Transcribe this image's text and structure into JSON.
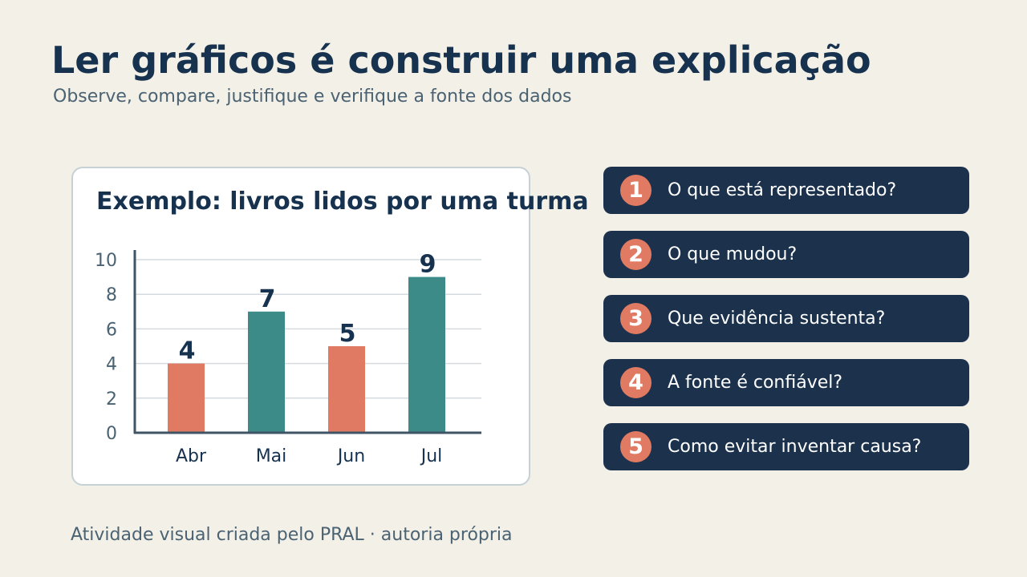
{
  "header": {
    "title": "Ler gráficos é construir uma explicação",
    "subtitle": "Observe, compare, justifique e verifique a fonte dos dados"
  },
  "chart_data": {
    "type": "bar",
    "title": "Exemplo: livros lidos por uma turma",
    "categories": [
      "Abr",
      "Mai",
      "Jun",
      "Jul"
    ],
    "values": [
      4,
      7,
      5,
      9
    ],
    "ylim": [
      0,
      10
    ],
    "yticks": [
      0,
      2,
      4,
      6,
      8,
      10
    ],
    "grid": true,
    "colors": [
      "#e07a62",
      "#3d8b88",
      "#e07a62",
      "#3d8b88"
    ],
    "data_label_color": "#17324f"
  },
  "questions": [
    {
      "number": "1",
      "text": "O que está representado?"
    },
    {
      "number": "2",
      "text": "O que mudou?"
    },
    {
      "number": "3",
      "text": "Que evidência sustenta?"
    },
    {
      "number": "4",
      "text": "A fonte é confiável?"
    },
    {
      "number": "5",
      "text": "Como evitar inventar causa?"
    }
  ],
  "footer": {
    "credit": "Atividade visual criada pelo PRAL · autoria própria"
  }
}
